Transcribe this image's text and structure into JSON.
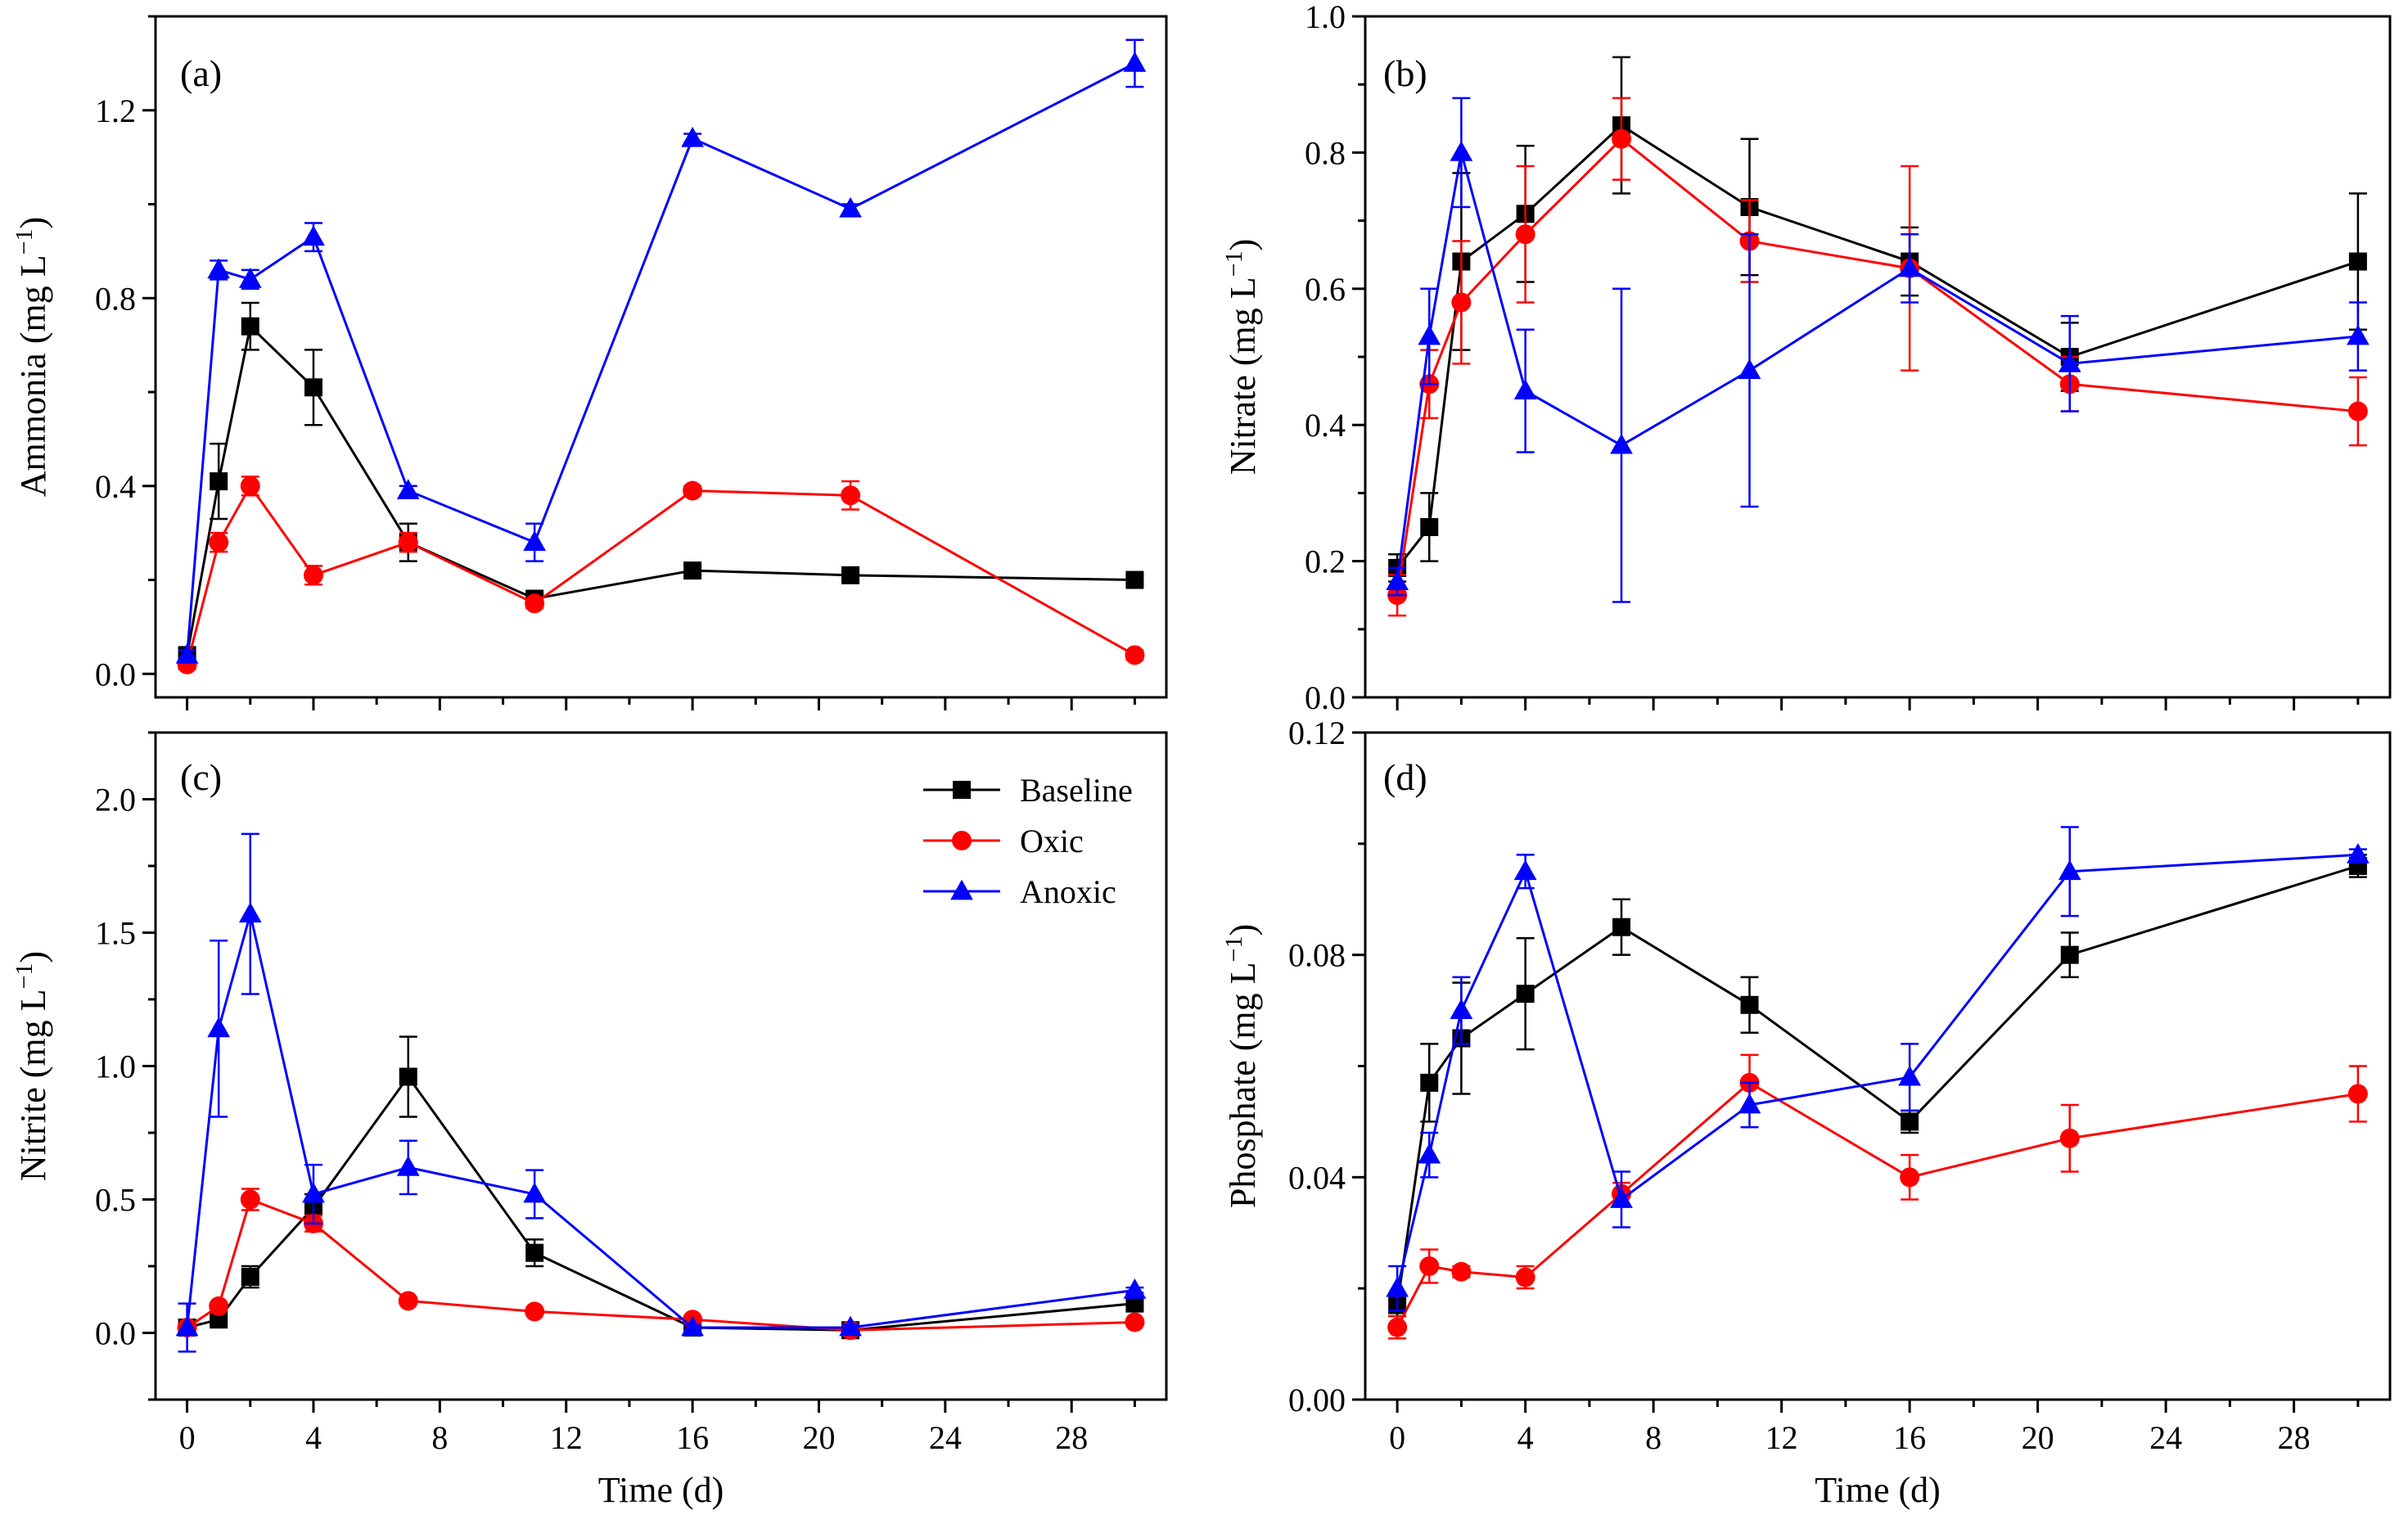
{
  "colors": {
    "Baseline": "#000000",
    "Oxic": "#ff0000",
    "Anoxic": "#0000ff"
  },
  "legend": {
    "entries": [
      {
        "name": "Baseline",
        "marker": "square",
        "color": "#000000"
      },
      {
        "name": "Oxic",
        "marker": "circle",
        "color": "#ff0000"
      },
      {
        "name": "Anoxic",
        "marker": "triangle",
        "color": "#0000ff"
      }
    ],
    "placement": "top-right of panel (c)"
  },
  "chart_data": [
    {
      "panel": "(a)",
      "type": "line",
      "ylabel": "Ammonia (mg L",
      "ylabel_sup": "−1",
      "ylabel_tail": ")",
      "xlabel": "",
      "xlim": [
        -1,
        31
      ],
      "ylim": [
        -0.05,
        1.4
      ],
      "xticks": [
        0,
        4,
        8,
        12,
        16,
        20,
        24,
        28
      ],
      "xtick_labels": false,
      "yticks": [
        0.0,
        0.4,
        0.8,
        1.2
      ],
      "ytick_labels": [
        "0.0",
        "0.4",
        "0.8",
        "1.2"
      ],
      "x": [
        0,
        1,
        2,
        4,
        7,
        11,
        16,
        21,
        30
      ],
      "series": [
        {
          "name": "Baseline",
          "values": [
            0.04,
            0.41,
            0.74,
            0.61,
            0.28,
            0.16,
            0.22,
            0.21,
            0.2
          ],
          "errors": [
            0.01,
            0.08,
            0.05,
            0.08,
            0.04,
            0.01,
            0.01,
            0.01,
            0.01
          ]
        },
        {
          "name": "Oxic",
          "values": [
            0.02,
            0.28,
            0.4,
            0.21,
            0.28,
            0.15,
            0.39,
            0.38,
            0.04
          ],
          "errors": [
            0.01,
            0.02,
            0.02,
            0.02,
            0.02,
            0.01,
            0.01,
            0.03,
            0.01
          ]
        },
        {
          "name": "Anoxic",
          "values": [
            0.04,
            0.86,
            0.84,
            0.93,
            0.39,
            0.28,
            1.14,
            0.99,
            1.3
          ],
          "errors": [
            0.01,
            0.02,
            0.02,
            0.03,
            0.01,
            0.04,
            0.01,
            0.01,
            0.05
          ]
        }
      ]
    },
    {
      "panel": "(b)",
      "type": "line",
      "ylabel": "Nitrate (mg L",
      "ylabel_sup": "−1",
      "ylabel_tail": ")",
      "xlabel": "",
      "xlim": [
        -1,
        31
      ],
      "ylim": [
        0.0,
        1.0
      ],
      "xticks": [
        0,
        4,
        8,
        12,
        16,
        20,
        24,
        28
      ],
      "xtick_labels": false,
      "yticks": [
        0.0,
        0.2,
        0.4,
        0.6,
        0.8,
        1.0
      ],
      "ytick_labels": [
        "0.0",
        "0.2",
        "0.4",
        "0.6",
        "0.8",
        "1.0"
      ],
      "x": [
        0,
        1,
        2,
        4,
        7,
        11,
        16,
        21,
        30
      ],
      "series": [
        {
          "name": "Baseline",
          "values": [
            0.19,
            0.25,
            0.64,
            0.71,
            0.84,
            0.72,
            0.64,
            0.5,
            0.64
          ],
          "errors": [
            0.02,
            0.05,
            0.13,
            0.1,
            0.1,
            0.1,
            0.05,
            0.05,
            0.1
          ]
        },
        {
          "name": "Oxic",
          "values": [
            0.15,
            0.46,
            0.58,
            0.68,
            0.82,
            0.67,
            0.63,
            0.46,
            0.42
          ],
          "errors": [
            0.03,
            0.05,
            0.09,
            0.1,
            0.06,
            0.06,
            0.15,
            0.04,
            0.05
          ]
        },
        {
          "name": "Anoxic",
          "values": [
            0.17,
            0.53,
            0.8,
            0.45,
            0.37,
            0.48,
            0.63,
            0.49,
            0.53
          ],
          "errors": [
            0.02,
            0.07,
            0.08,
            0.09,
            0.23,
            0.2,
            0.05,
            0.07,
            0.05
          ]
        }
      ]
    },
    {
      "panel": "(c)",
      "type": "line",
      "ylabel": "Nitrite (mg L",
      "ylabel_sup": "−1",
      "ylabel_tail": ")",
      "xlabel": "Time (d)",
      "xlim": [
        -1,
        31
      ],
      "ylim": [
        -0.25,
        2.25
      ],
      "xticks": [
        0,
        4,
        8,
        12,
        16,
        20,
        24,
        28
      ],
      "xtick_labels": [
        "0",
        "4",
        "8",
        "12",
        "16",
        "20",
        "24",
        "28"
      ],
      "yticks": [
        0.0,
        0.5,
        1.0,
        1.5,
        2.0
      ],
      "ytick_labels": [
        "0.0",
        "0.5",
        "1.0",
        "1.5",
        "2.0"
      ],
      "x": [
        0,
        1,
        2,
        4,
        7,
        11,
        16,
        21,
        30
      ],
      "series": [
        {
          "name": "Baseline",
          "values": [
            0.02,
            0.05,
            0.21,
            0.47,
            0.96,
            0.3,
            0.02,
            0.01,
            0.11
          ],
          "errors": [
            0.01,
            0.01,
            0.04,
            0.05,
            0.15,
            0.05,
            0.01,
            0.01,
            0.01
          ]
        },
        {
          "name": "Oxic",
          "values": [
            0.02,
            0.1,
            0.5,
            0.41,
            0.12,
            0.08,
            0.05,
            0.01,
            0.04
          ],
          "errors": [
            0.01,
            0.01,
            0.04,
            0.03,
            0.01,
            0.01,
            0.01,
            0.01,
            0.01
          ]
        },
        {
          "name": "Anoxic",
          "values": [
            0.02,
            1.14,
            1.57,
            0.52,
            0.62,
            0.52,
            0.02,
            0.02,
            0.16
          ],
          "errors": [
            0.09,
            0.33,
            0.3,
            0.11,
            0.1,
            0.09,
            0.01,
            0.01,
            0.01
          ]
        }
      ]
    },
    {
      "panel": "(d)",
      "type": "line",
      "ylabel": "Phosphate (mg L",
      "ylabel_sup": "−1",
      "ylabel_tail": ")",
      "xlabel": "Time (d)",
      "xlim": [
        -1,
        31
      ],
      "ylim": [
        0.0,
        0.12
      ],
      "xticks": [
        0,
        4,
        8,
        12,
        16,
        20,
        24,
        28
      ],
      "xtick_labels": [
        "0",
        "4",
        "8",
        "12",
        "16",
        "20",
        "24",
        "28"
      ],
      "yticks": [
        0.0,
        0.04,
        0.08,
        0.12
      ],
      "ytick_labels": [
        "0.00",
        "0.04",
        "0.08",
        "0.12"
      ],
      "x": [
        0,
        1,
        2,
        4,
        7,
        11,
        16,
        21,
        30
      ],
      "series": [
        {
          "name": "Baseline",
          "values": [
            0.017,
            0.057,
            0.065,
            0.073,
            0.085,
            0.071,
            0.05,
            0.08,
            0.096
          ],
          "errors": [
            0.002,
            0.007,
            0.01,
            0.01,
            0.005,
            0.005,
            0.002,
            0.004,
            0.002
          ]
        },
        {
          "name": "Oxic",
          "values": [
            0.013,
            0.024,
            0.023,
            0.022,
            0.037,
            0.057,
            0.04,
            0.047,
            0.055
          ],
          "errors": [
            0.002,
            0.003,
            0.001,
            0.002,
            0.002,
            0.005,
            0.004,
            0.006,
            0.005
          ]
        },
        {
          "name": "Anoxic",
          "values": [
            0.02,
            0.044,
            0.07,
            0.095,
            0.036,
            0.053,
            0.058,
            0.095,
            0.098
          ],
          "errors": [
            0.004,
            0.004,
            0.006,
            0.003,
            0.005,
            0.004,
            0.006,
            0.008,
            0.001
          ]
        }
      ]
    }
  ]
}
